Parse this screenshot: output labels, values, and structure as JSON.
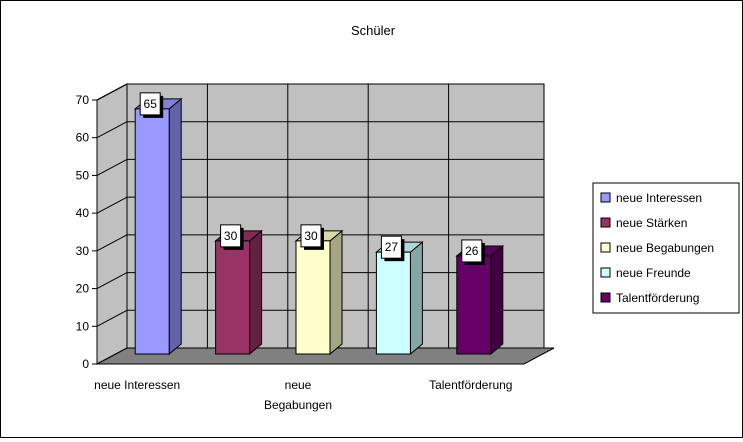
{
  "chart_data": {
    "type": "bar",
    "title": "Schüler",
    "categories": [
      "neue Interessen",
      "neue Stärken",
      "neue Begabungen",
      "neue Freunde",
      "Talentförderung"
    ],
    "x_tick_labels": [
      [
        "neue Interessen"
      ],
      [],
      [
        "neue",
        "Begabungen"
      ],
      [],
      [
        "Talentförderung"
      ]
    ],
    "values": [
      65,
      30,
      30,
      27,
      26
    ],
    "data_labels": [
      "65",
      "30",
      "30",
      "27",
      "26"
    ],
    "colors": [
      "#9999ff",
      "#993366",
      "#ffffcc",
      "#ccffff",
      "#660066"
    ],
    "ylim": [
      0,
      70
    ],
    "yticks": [
      0,
      10,
      20,
      30,
      40,
      50,
      60,
      70
    ],
    "grid": true,
    "three_d": true,
    "legend_position": "right"
  }
}
